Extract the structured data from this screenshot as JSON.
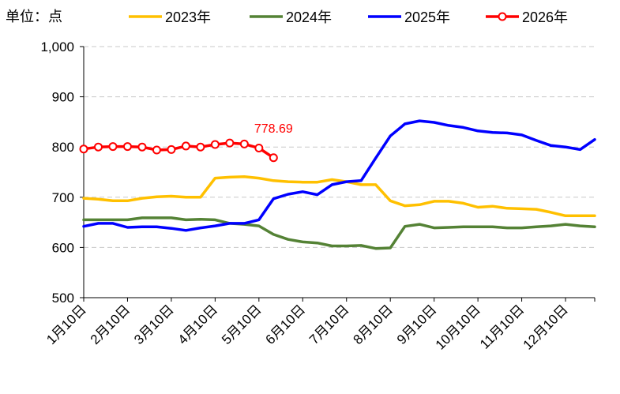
{
  "unit_label": "单位：点",
  "annotation": {
    "text": "778.69",
    "color": "#ff0000"
  },
  "chart_data": {
    "type": "line",
    "title": "",
    "xlabel": "",
    "ylabel": "",
    "ylim": [
      500,
      1000
    ],
    "yticks": [
      500,
      600,
      700,
      800,
      900,
      1000
    ],
    "ytick_labels": [
      "500",
      "600",
      "700",
      "800",
      "900",
      "1,000"
    ],
    "x_range": [
      1,
      35
    ],
    "x_ticks": [
      1,
      4,
      7,
      10,
      13,
      16,
      19,
      22,
      25,
      28,
      31,
      34
    ],
    "x_tick_labels": [
      "1月10日",
      "2月10日",
      "3月10日",
      "4月10日",
      "5月10日",
      "6月10日",
      "7月10日",
      "8月10日",
      "9月10日",
      "10月10日",
      "11月10日",
      "12月10日"
    ],
    "grid": {
      "horizontal": true,
      "style": "dashed"
    },
    "legend_position": "top",
    "series": [
      {
        "name": "2023年",
        "color": "#ffc000",
        "markers": false,
        "x": [
          1,
          2,
          3,
          4,
          5,
          6,
          7,
          8,
          9,
          10,
          11,
          12,
          13,
          14,
          15,
          16,
          17,
          18,
          19,
          20,
          21,
          22,
          23,
          24,
          25,
          26,
          27,
          28,
          29,
          30,
          31,
          32,
          33,
          34,
          35,
          36
        ],
        "values": [
          698,
          696,
          693,
          693,
          698,
          701,
          702,
          700,
          700,
          738,
          740,
          741,
          738,
          733,
          731,
          730,
          730,
          735,
          731,
          725,
          725,
          693,
          683,
          685,
          692,
          692,
          688,
          680,
          682,
          678,
          677,
          676,
          670,
          663,
          663,
          663
        ]
      },
      {
        "name": "2024年",
        "color": "#548235",
        "markers": false,
        "x": [
          1,
          2,
          3,
          4,
          5,
          6,
          7,
          8,
          9,
          10,
          11,
          12,
          13,
          14,
          15,
          16,
          17,
          18,
          19,
          20,
          21,
          22,
          23,
          24,
          25,
          26,
          27,
          28,
          29,
          30,
          31,
          32,
          33,
          34,
          35,
          36
        ],
        "values": [
          655,
          655,
          655,
          655,
          659,
          659,
          659,
          655,
          656,
          655,
          648,
          646,
          643,
          626,
          616,
          611,
          609,
          603,
          603,
          604,
          598,
          599,
          642,
          646,
          639,
          640,
          641,
          641,
          641,
          639,
          639,
          641,
          643,
          646,
          643,
          641
        ]
      },
      {
        "name": "2025年",
        "color": "#0000ff",
        "markers": false,
        "x": [
          1,
          2,
          3,
          4,
          5,
          6,
          7,
          8,
          9,
          10,
          11,
          12,
          13,
          14,
          15,
          16,
          17,
          18,
          19,
          20,
          21,
          22,
          23,
          24,
          25,
          26,
          27,
          28,
          29,
          30,
          31,
          32,
          33,
          34,
          35,
          36
        ],
        "values": [
          642,
          648,
          648,
          640,
          641,
          641,
          638,
          634,
          639,
          643,
          648,
          648,
          655,
          697,
          706,
          711,
          705,
          725,
          731,
          733,
          778,
          822,
          846,
          852,
          849,
          843,
          839,
          832,
          829,
          828,
          824,
          813,
          803,
          800,
          795,
          815
        ]
      },
      {
        "name": "2026年",
        "color": "#ff0000",
        "markers": true,
        "x": [
          1,
          2,
          3,
          4,
          5,
          6,
          7,
          8,
          9,
          10,
          11,
          12,
          13,
          14
        ],
        "values": [
          796,
          800,
          801,
          801,
          800,
          794,
          795,
          802,
          800,
          805,
          808,
          806,
          798,
          778.69
        ]
      }
    ]
  }
}
